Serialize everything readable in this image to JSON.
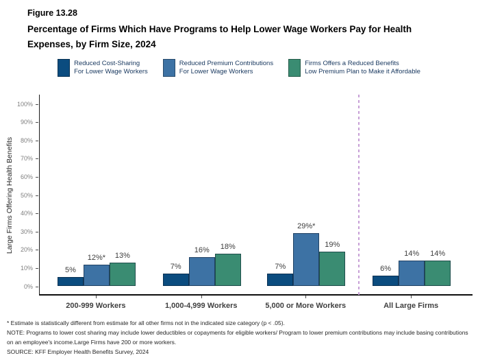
{
  "header": {
    "figure_label": "Figure 13.28",
    "title": "Percentage of Firms Which Have Programs to Help Lower Wage Workers Pay for Health Expenses, by Firm Size, 2024"
  },
  "chart_data": {
    "type": "bar",
    "title": "Percentage of Firms Which Have Programs to Help Lower Wage Workers Pay for Health Expenses, by Firm Size, 2024",
    "categories": [
      "200-999 Workers",
      "1,000-4,999 Workers",
      "5,000 or More Workers",
      "All Large Firms"
    ],
    "series": [
      {
        "name": "Reduced Cost-Sharing For Lower Wage Workers",
        "legend_lines": [
          "Reduced Cost-Sharing",
          "For Lower Wage Workers"
        ],
        "color": "#0B4C7F",
        "values": [
          5,
          7,
          7,
          6
        ],
        "labels": [
          "5%",
          "7%",
          "7%",
          "6%"
        ]
      },
      {
        "name": "Reduced Premium Contributions For Lower Wage Workers",
        "legend_lines": [
          "Reduced Premium Contributions",
          "For Lower Wage Workers"
        ],
        "color": "#3D72A4",
        "values": [
          12,
          16,
          29,
          14
        ],
        "labels": [
          "12%*",
          "16%",
          "29%*",
          "14%"
        ]
      },
      {
        "name": "Firms Offers a Reduced Benefits Low Premium Plan to Make it Affordable",
        "legend_lines": [
          "Firms Offers a Reduced Benefits",
          "Low Premium Plan to Make it Affordable"
        ],
        "color": "#3A8C72",
        "values": [
          13,
          18,
          19,
          14
        ],
        "labels": [
          "13%",
          "18%",
          "19%",
          "14%"
        ]
      }
    ],
    "ylabel": "Large Firms Offering Health Benefits",
    "ylim": [
      0,
      105
    ],
    "ytick_labels": [
      "0%",
      "10%",
      "20%",
      "30%",
      "40%",
      "50%",
      "60%",
      "70%",
      "80%",
      "90%",
      "100%"
    ],
    "grid": false,
    "legend_position": "top",
    "separator": {
      "between": [
        "5,000 or More Workers",
        "All Large Firms"
      ],
      "style": "dashed",
      "color": "#C79FD6"
    }
  },
  "footnotes": [
    "* Estimate is statistically different from estimate for all other firms not in the indicated size category (p < .05).",
    "NOTE: Programs to lower cost sharing may include lower deductibles or copayments for eligible workers/ Program to lower premium contributions may include basing contributions on an employee's income.Large Firms have 200 or more workers.",
    "SOURCE: KFF Employer Health Benefits Survey, 2024"
  ]
}
